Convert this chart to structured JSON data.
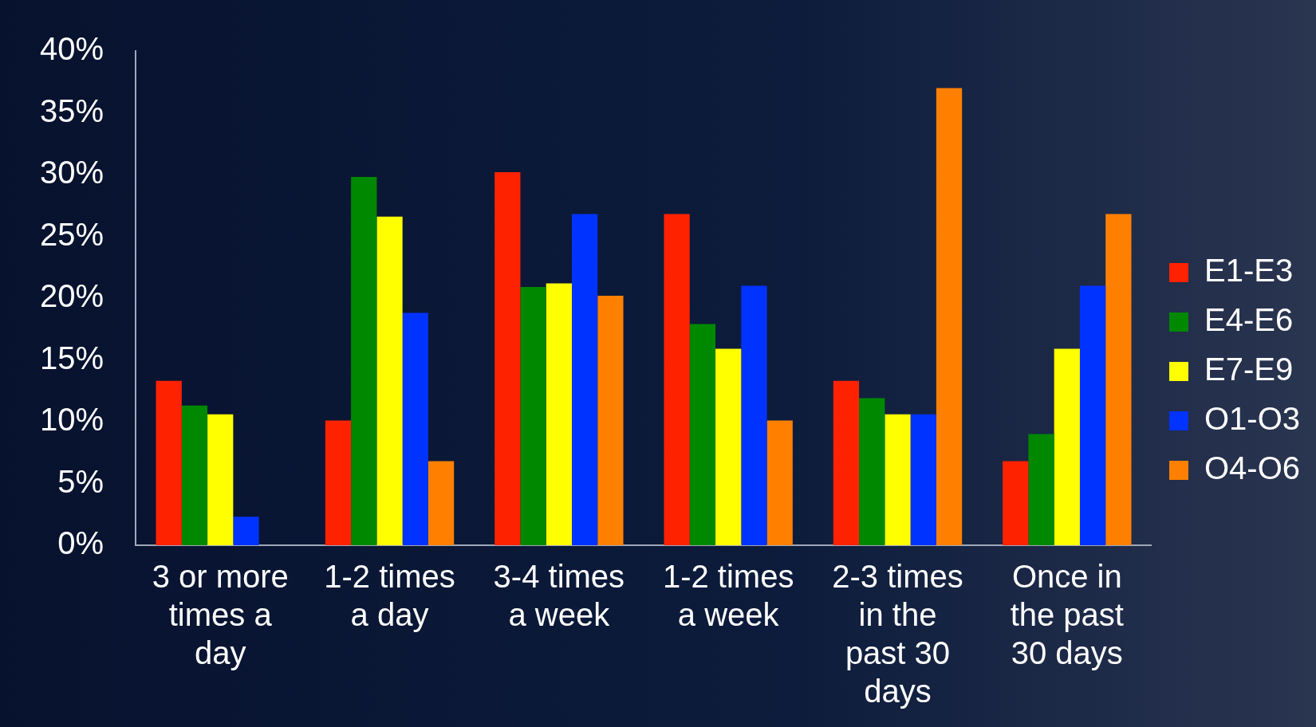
{
  "chart_data": {
    "type": "bar",
    "categories": [
      "3 or more times a day",
      "1-2 times a day",
      "3-4 times a week",
      "1-2 times a week",
      "2-3 times in the past 30 days",
      "Once in the past 30 days"
    ],
    "series": [
      {
        "name": "E1-E3",
        "color": "#ff2200",
        "values": [
          13.3,
          10.1,
          30.2,
          26.8,
          13.3,
          6.8
        ]
      },
      {
        "name": "E4-E6",
        "color": "#008800",
        "values": [
          11.3,
          29.8,
          20.9,
          17.9,
          11.9,
          9.0
        ]
      },
      {
        "name": "E7-E9",
        "color": "#ffff00",
        "values": [
          10.6,
          26.6,
          21.2,
          15.9,
          10.6,
          15.9
        ]
      },
      {
        "name": "O1-O3",
        "color": "#0033ff",
        "values": [
          2.3,
          18.8,
          26.8,
          21.0,
          10.6,
          21.0
        ]
      },
      {
        "name": "O4-O6",
        "color": "#ff8000",
        "values": [
          0,
          6.8,
          20.2,
          10.1,
          37.0,
          26.8
        ]
      }
    ],
    "ylim": [
      0,
      40
    ],
    "yticks": [
      {
        "value": 0,
        "label": "0%"
      },
      {
        "value": 5,
        "label": "5%"
      },
      {
        "value": 10,
        "label": "10%"
      },
      {
        "value": 15,
        "label": "15%"
      },
      {
        "value": 20,
        "label": "20%"
      },
      {
        "value": 25,
        "label": "25%"
      },
      {
        "value": 30,
        "label": "30%"
      },
      {
        "value": 35,
        "label": "35%"
      },
      {
        "value": 40,
        "label": "40%"
      }
    ],
    "grid": false,
    "legend": "right"
  }
}
